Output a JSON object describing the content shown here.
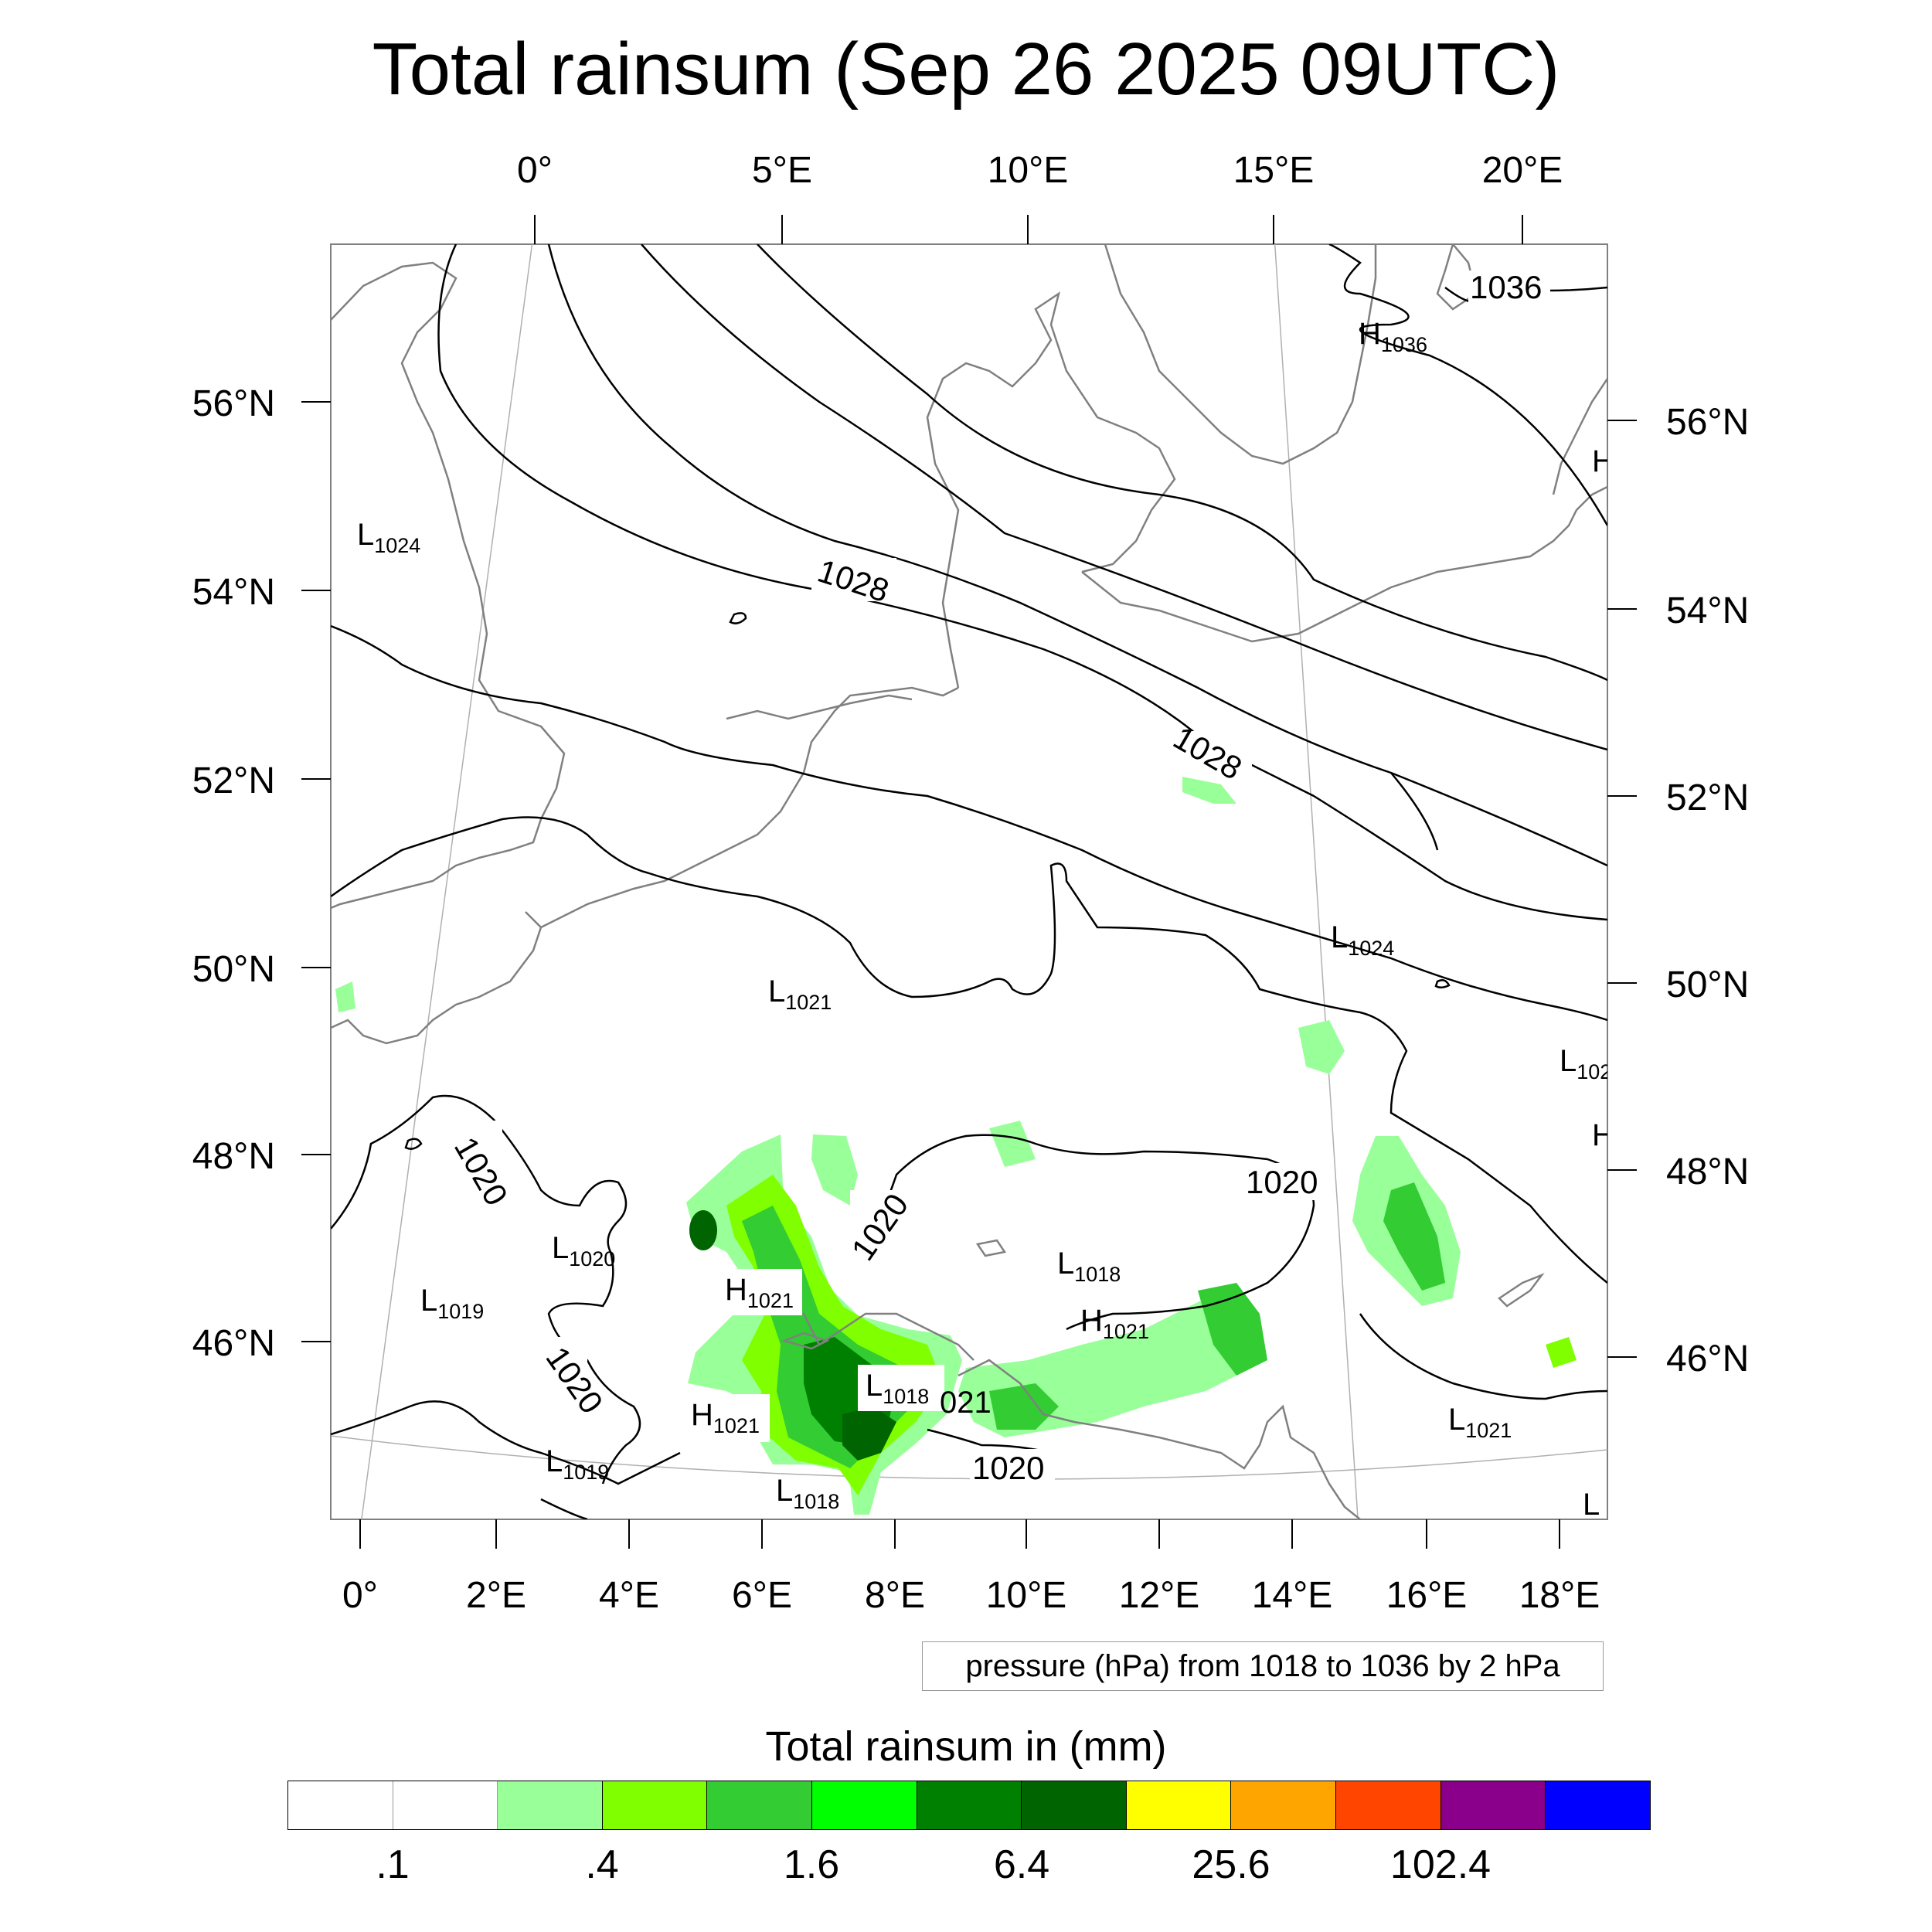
{
  "title": "Total rainsum (Sep 26 2025 09UTC)",
  "map": {
    "projection": "rotated lat-lon (Lambert-like)",
    "lon_labels_top": [
      "0°",
      "5°E",
      "10°E",
      "15°E",
      "20°E"
    ],
    "lon_labels_bottom": [
      "0°",
      "2°E",
      "4°E",
      "6°E",
      "8°E",
      "10°E",
      "12°E",
      "14°E",
      "16°E",
      "18°E"
    ],
    "lat_labels_left": [
      "56°N",
      "54°N",
      "52°N",
      "50°N",
      "48°N",
      "46°N"
    ],
    "lat_labels_right": [
      "56°N",
      "54°N",
      "52°N",
      "50°N",
      "48°N",
      "46°N"
    ],
    "contour_labels": [
      "1028",
      "1028",
      "1036",
      "1020",
      "1020",
      "1020",
      "1020",
      "1020"
    ],
    "pressure_centers": [
      {
        "type": "L",
        "value": "1024"
      },
      {
        "type": "H",
        "value": "1036"
      },
      {
        "type": "H",
        "value": ""
      },
      {
        "type": "L",
        "value": "1024"
      },
      {
        "type": "L",
        "value": "1021"
      },
      {
        "type": "L",
        "value": "102"
      },
      {
        "type": "H",
        "value": ""
      },
      {
        "type": "L",
        "value": "1020"
      },
      {
        "type": "L",
        "value": "1019"
      },
      {
        "type": "H",
        "value": "1021"
      },
      {
        "type": "L",
        "value": "1018"
      },
      {
        "type": "H",
        "value": "1021"
      },
      {
        "type": "L",
        "value": "1018"
      },
      {
        "type": "H",
        "value": "1021"
      },
      {
        "type": "L",
        "value": "1019"
      },
      {
        "type": "L",
        "value": "1018"
      },
      {
        "type": "L",
        "value": "1021"
      },
      {
        "type": "L",
        "value": ""
      }
    ],
    "stray_label": "021",
    "colors": {
      "coastline": "#808080",
      "contour": "#000000",
      "graticule": "#b0b0b0",
      "rain_light": "#99ff99",
      "rain_yellowgreen": "#80ff00",
      "rain_green": "#33cc33",
      "rain_lime": "#00ff00",
      "rain_dark": "#008000",
      "rain_darkest": "#006400"
    }
  },
  "pressure_note": "pressure (hPa) from 1018 to 1036 by 2 hPa",
  "colorbar": {
    "title": "Total rainsum in (mm)",
    "colors": [
      "#ffffff",
      "#ffffff",
      "#99ff99",
      "#80ff00",
      "#33cc33",
      "#00ff00",
      "#008000",
      "#006400",
      "#ffff00",
      "#ffa500",
      "#ff4500",
      "#8b008b",
      "#0000ff"
    ],
    "labels": [
      ".1",
      ".4",
      "1.6",
      "6.4",
      "25.6",
      "102.4"
    ]
  }
}
